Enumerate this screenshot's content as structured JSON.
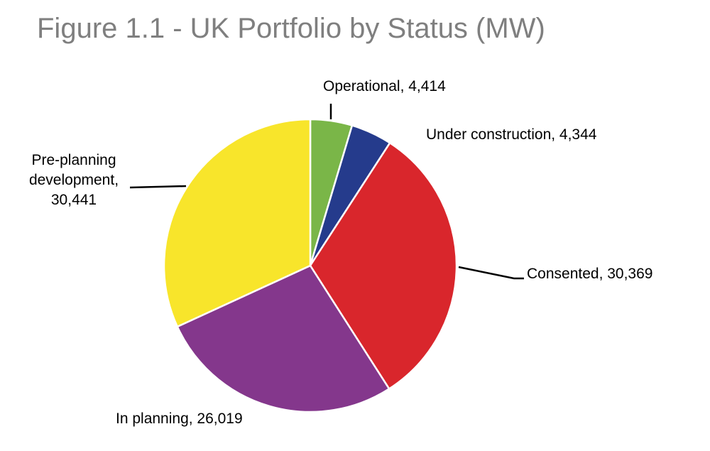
{
  "chart_data": {
    "type": "pie",
    "title": "Figure 1.1 - UK Portfolio by Status (MW)",
    "start": "top",
    "direction": "clockwise",
    "slices": [
      {
        "label": "Operational",
        "value": 4414,
        "color": "#7ab648"
      },
      {
        "label": "Under construction",
        "value": 4344,
        "color": "#253b8c"
      },
      {
        "label": "Consented",
        "value": 30369,
        "color": "#d9262c"
      },
      {
        "label": "In planning",
        "value": 26019,
        "color": "#84378c"
      },
      {
        "label": "Pre-planning development",
        "value": 30441,
        "color": "#f8e52b"
      }
    ],
    "data_labels": [
      {
        "lines": [
          "Operational, 4,414"
        ]
      },
      {
        "lines": [
          "Under construction, 4,344"
        ]
      },
      {
        "lines": [
          "Consented, 30,369"
        ]
      },
      {
        "lines": [
          "In planning, 26,019"
        ]
      },
      {
        "lines": [
          "Pre-planning",
          "development,",
          "30,441"
        ]
      }
    ]
  }
}
